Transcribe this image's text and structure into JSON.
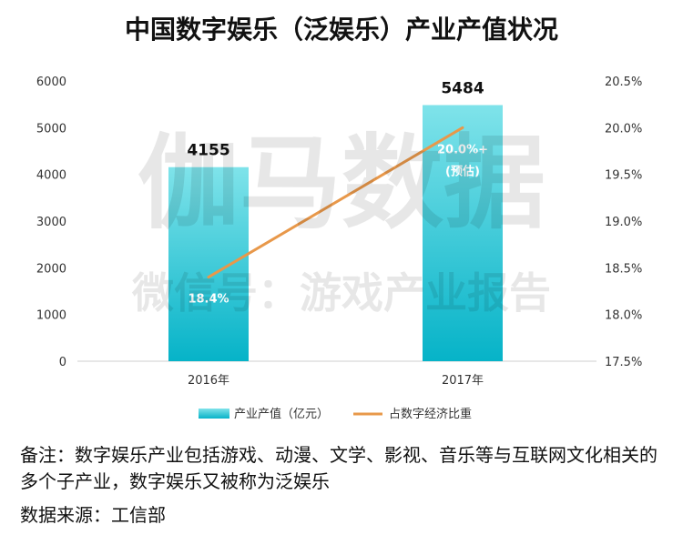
{
  "title": "中国数字娱乐（泛娱乐）产业产值状况",
  "watermark": {
    "main": "伽马数据",
    "sub": "微信号：游戏产业报告"
  },
  "chart_data": {
    "type": "bar+line",
    "categories": [
      "2016年",
      "2017年"
    ],
    "series": [
      {
        "name": "产业产值（亿元）",
        "type": "bar",
        "axis": "left",
        "values": [
          4155,
          5484
        ],
        "labels": [
          "4155",
          "5484"
        ],
        "color": "#27c2d4"
      },
      {
        "name": "占数字经济比重",
        "type": "line",
        "axis": "right",
        "values": [
          18.4,
          20.0
        ],
        "labels": [
          "18.4%",
          "20.0%+"
        ],
        "color": "#e8984a"
      }
    ],
    "point_note": "(预估)",
    "y_left": {
      "min": 0,
      "max": 6000,
      "ticks": [
        "6000",
        "5000",
        "4000",
        "3000",
        "2000",
        "1000",
        "0"
      ]
    },
    "y_right": {
      "min": 17.5,
      "max": 20.5,
      "ticks": [
        "20.5%",
        "20.0%",
        "19.5%",
        "19.0%",
        "18.5%",
        "18.0%",
        "17.5%"
      ]
    },
    "legend_position": "bottom",
    "grid": false
  },
  "notes": {
    "remark": "备注：数字娱乐产业包括游戏、动漫、文学、影视、音乐等与互联网文化相关的多个子产业，数字娱乐又被称为泛娱乐",
    "source": "数据来源：工信部"
  }
}
